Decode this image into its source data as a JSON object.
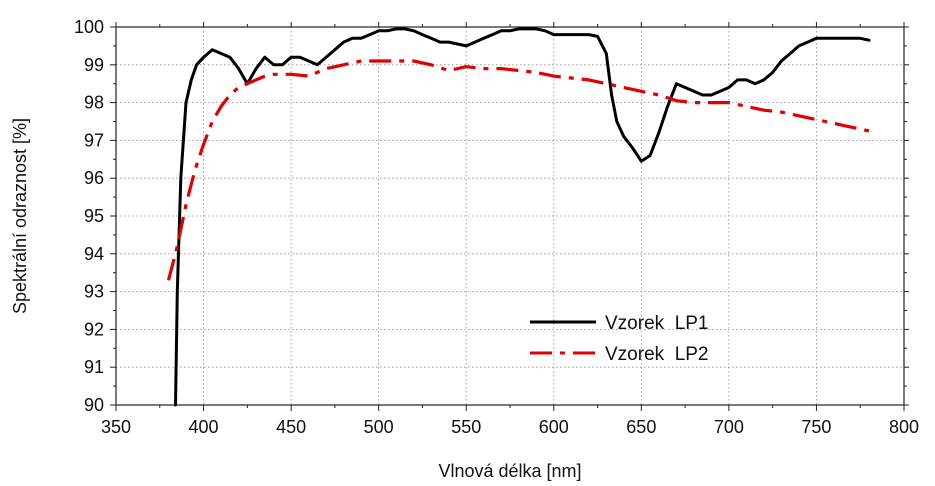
{
  "chart_data": {
    "type": "line",
    "xlabel": "Vlnová délka [nm]",
    "ylabel": "Spektrální odraznost [%]",
    "xlim": [
      350,
      800
    ],
    "ylim": [
      90,
      100
    ],
    "xticks": [
      350,
      400,
      450,
      500,
      550,
      600,
      650,
      700,
      750,
      800
    ],
    "yticks": [
      90,
      91,
      92,
      93,
      94,
      95,
      96,
      97,
      98,
      99,
      100
    ],
    "grid": true,
    "legend_position": "bottom-right",
    "series": [
      {
        "name": "Vzorek  LP1",
        "color": "#000000",
        "style": "solid",
        "x": [
          384,
          385,
          387,
          390,
          393,
          396,
          400,
          405,
          410,
          415,
          420,
          425,
          430,
          435,
          440,
          445,
          450,
          455,
          460,
          465,
          470,
          475,
          480,
          485,
          490,
          495,
          500,
          505,
          510,
          515,
          520,
          525,
          530,
          535,
          540,
          545,
          550,
          555,
          560,
          565,
          570,
          575,
          580,
          585,
          590,
          595,
          600,
          605,
          610,
          615,
          620,
          625,
          630,
          633,
          636,
          640,
          645,
          650,
          655,
          660,
          665,
          670,
          675,
          680,
          685,
          690,
          695,
          700,
          705,
          710,
          715,
          720,
          725,
          730,
          735,
          740,
          745,
          750,
          755,
          760,
          765,
          770,
          775,
          780
        ],
        "y": [
          90.0,
          93.0,
          96.0,
          98.0,
          98.6,
          99.0,
          99.2,
          99.4,
          99.3,
          99.2,
          98.9,
          98.5,
          98.9,
          99.2,
          99.0,
          99.0,
          99.2,
          99.2,
          99.1,
          99.0,
          99.2,
          99.4,
          99.6,
          99.7,
          99.7,
          99.8,
          99.9,
          99.9,
          99.95,
          99.95,
          99.9,
          99.8,
          99.7,
          99.6,
          99.6,
          99.55,
          99.5,
          99.6,
          99.7,
          99.8,
          99.9,
          99.9,
          99.95,
          99.95,
          99.95,
          99.9,
          99.8,
          99.8,
          99.8,
          99.8,
          99.8,
          99.75,
          99.3,
          98.2,
          97.5,
          97.1,
          96.8,
          96.45,
          96.6,
          97.2,
          97.9,
          98.5,
          98.4,
          98.3,
          98.2,
          98.2,
          98.3,
          98.4,
          98.6,
          98.6,
          98.5,
          98.6,
          98.8,
          99.1,
          99.3,
          99.5,
          99.6,
          99.7,
          99.7,
          99.7,
          99.7,
          99.7,
          99.7,
          99.65
        ]
      },
      {
        "name": "Vzorek  LP2",
        "color": "#e00000",
        "style": "dashdot",
        "x": [
          380,
          385,
          390,
          395,
          400,
          405,
          410,
          415,
          420,
          425,
          430,
          435,
          440,
          450,
          460,
          470,
          480,
          490,
          500,
          510,
          520,
          530,
          540,
          550,
          560,
          570,
          580,
          590,
          600,
          610,
          620,
          630,
          640,
          650,
          660,
          670,
          680,
          690,
          700,
          710,
          720,
          730,
          740,
          750,
          760,
          770,
          780
        ],
        "y": [
          93.3,
          94.2,
          95.3,
          96.2,
          96.9,
          97.5,
          97.9,
          98.2,
          98.4,
          98.5,
          98.6,
          98.7,
          98.75,
          98.75,
          98.7,
          98.9,
          99.0,
          99.1,
          99.1,
          99.1,
          99.1,
          99.0,
          98.85,
          98.95,
          98.9,
          98.9,
          98.85,
          98.8,
          98.7,
          98.65,
          98.6,
          98.5,
          98.4,
          98.3,
          98.2,
          98.05,
          98.0,
          98.0,
          98.0,
          97.9,
          97.8,
          97.75,
          97.65,
          97.55,
          97.45,
          97.35,
          97.25
        ]
      }
    ]
  }
}
